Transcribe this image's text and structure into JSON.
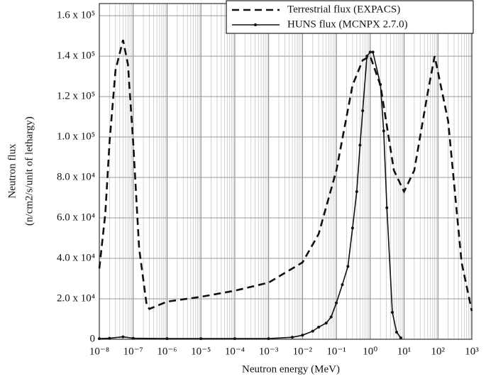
{
  "chart_data": {
    "type": "line",
    "x_label": "Neutron energy (MeV)",
    "y_label": [
      "Neutron flux",
      "(n/cm2/s/unit of lethargy)"
    ],
    "log_x": true,
    "grid": true,
    "xlim": [
      1e-08,
      1000
    ],
    "ylim": [
      0,
      166000
    ],
    "xticks": [
      {
        "value": 1e-08,
        "label": "10⁻⁸"
      },
      {
        "value": 1e-07,
        "label": "10⁻⁷"
      },
      {
        "value": 1e-06,
        "label": "10⁻⁶"
      },
      {
        "value": 1e-05,
        "label": "10⁻⁵"
      },
      {
        "value": 0.0001,
        "label": "10⁻⁴"
      },
      {
        "value": 0.001,
        "label": "10⁻³"
      },
      {
        "value": 0.01,
        "label": "10⁻²"
      },
      {
        "value": 0.1,
        "label": "10⁻¹"
      },
      {
        "value": 1,
        "label": "10⁰"
      },
      {
        "value": 10,
        "label": "10¹"
      },
      {
        "value": 100,
        "label": "10²"
      },
      {
        "value": 1000,
        "label": "10³"
      }
    ],
    "yticks": [
      0,
      {
        "value": 20000,
        "label": "2.0 x 10⁴"
      },
      {
        "value": 40000,
        "label": "4.0 x 10⁴"
      },
      {
        "value": 60000,
        "label": "6.0 x 10⁴"
      },
      {
        "value": 80000,
        "label": "8.0 x 10⁴"
      },
      {
        "value": 100000,
        "label": "1.0 x 10⁵"
      },
      {
        "value": 120000,
        "label": "1.2 x 10⁵"
      },
      {
        "value": 140000,
        "label": "1.4 x 10⁵"
      },
      {
        "value": 160000,
        "label": "1.6 x 10⁵"
      }
    ],
    "legend": "top-right",
    "series": [
      {
        "name": "Terrestrial flux (EXPACS)",
        "color": "#111111",
        "dash": true,
        "markers": false,
        "x": [
          1e-08,
          1.5e-08,
          2e-08,
          3e-08,
          5e-08,
          7e-08,
          1e-07,
          1.5e-07,
          2.5e-07,
          3e-07,
          1e-06,
          1e-05,
          0.0001,
          0.001,
          0.01,
          0.03,
          0.1,
          0.3,
          0.6,
          1,
          2,
          5,
          10,
          20,
          50,
          80,
          200,
          500,
          1000
        ],
        "values": [
          35000,
          62000,
          97500,
          133000,
          148000,
          136000,
          97500,
          45000,
          17000,
          15000,
          18600,
          21000,
          24000,
          28000,
          38000,
          52000,
          83500,
          125600,
          138000,
          140000,
          125600,
          83500,
          73000,
          83500,
          122000,
          140000,
          108000,
          38000,
          14000
        ]
      },
      {
        "name": "HUNS flux (MCNPX 2.7.0)",
        "color": "#111111",
        "dash": false,
        "markers": true,
        "x": [
          1e-08,
          2e-08,
          5e-08,
          1e-07,
          1e-06,
          1e-05,
          0.0001,
          0.001,
          0.005,
          0.01,
          0.02,
          0.03,
          0.05,
          0.07,
          0.1,
          0.15,
          0.22,
          0.3,
          0.4,
          0.5,
          0.6,
          0.8,
          1,
          1.2,
          2,
          2.5,
          3.1,
          4.5,
          6,
          8
        ],
        "values": [
          300,
          500,
          1200,
          500,
          300,
          300,
          300,
          300,
          1000,
          2000,
          4000,
          6000,
          8000,
          11000,
          18000,
          27000,
          36000,
          55000,
          73000,
          96000,
          113000,
          140000,
          142000,
          142000,
          126000,
          103000,
          65000,
          13300,
          3500,
          700
        ]
      }
    ]
  }
}
